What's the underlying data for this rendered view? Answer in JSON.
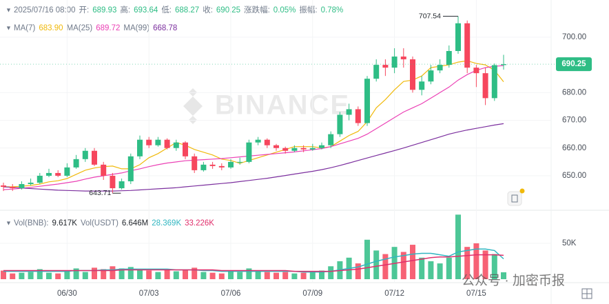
{
  "chart_data": {
    "type": "candlestick",
    "header": {
      "time": "2025/07/16 08:00",
      "open_label": "开:",
      "high_label": "高:",
      "low_label": "低:",
      "close_label": "收:",
      "change_label": "涨跌幅:",
      "change": "0.05%",
      "amp_label": "振幅:",
      "amp": "0.78%"
    },
    "categories": [
      null,
      null,
      null,
      null,
      null,
      null,
      null,
      "06/30",
      null,
      null,
      null,
      null,
      null,
      null,
      null,
      null,
      "07/03",
      null,
      null,
      null,
      null,
      null,
      null,
      null,
      null,
      "07/06",
      null,
      null,
      null,
      null,
      null,
      null,
      null,
      null,
      "07/09",
      null,
      null,
      null,
      null,
      null,
      null,
      null,
      null,
      "07/12",
      null,
      null,
      null,
      null,
      null,
      null,
      null,
      null,
      "07/15",
      null,
      null,
      null
    ],
    "open": [
      646.5,
      646,
      645.5,
      647,
      647.5,
      650,
      651,
      650,
      653,
      656,
      659,
      654,
      650,
      645.5,
      648,
      657,
      663,
      661,
      663,
      660,
      662,
      657,
      652,
      654,
      653.5,
      653,
      655,
      655,
      662,
      663,
      661,
      660,
      659,
      660,
      659.5,
      660,
      661,
      665,
      672,
      674,
      669,
      685,
      690,
      689,
      693,
      692,
      681,
      684,
      688,
      690,
      695,
      705,
      689,
      687,
      678,
      689.93
    ],
    "high": [
      647.5,
      647,
      648,
      649,
      651,
      652.5,
      652,
      654.5,
      657.5,
      660,
      660,
      655,
      651,
      649,
      658,
      664.5,
      664,
      664,
      663.5,
      663,
      662.5,
      658,
      655,
      655,
      654.5,
      656,
      656.5,
      663,
      664,
      663.5,
      661.5,
      660.5,
      661,
      661,
      661.5,
      662,
      666,
      673,
      676,
      675,
      686,
      692,
      692,
      696,
      696,
      693,
      686,
      690,
      692,
      697,
      707.54,
      706,
      690,
      689,
      690.5,
      693.64
    ],
    "low": [
      644.5,
      644.5,
      645,
      646.5,
      647,
      649.5,
      649.5,
      649.5,
      652.5,
      655,
      653.5,
      648.5,
      643.71,
      645,
      647,
      656,
      660,
      660.5,
      659.5,
      659,
      656,
      651,
      651.5,
      652.5,
      652,
      652.5,
      654,
      654.5,
      661,
      660,
      659,
      658,
      658.5,
      658.5,
      659,
      659.5,
      660,
      664,
      670,
      668,
      668,
      684,
      686,
      687,
      689,
      680,
      679,
      683,
      687,
      689,
      694,
      687,
      682,
      675.5,
      677,
      688.27
    ],
    "close": [
      646,
      645.5,
      647,
      647.5,
      650,
      651,
      650,
      653,
      656,
      659,
      654,
      650,
      645.5,
      648,
      657,
      663,
      661,
      663,
      660,
      662,
      657,
      652,
      654,
      653.5,
      653,
      655,
      655,
      662,
      663,
      661,
      660,
      659,
      660,
      659.5,
      660,
      661,
      665,
      672,
      674,
      669,
      685,
      690,
      689,
      693,
      692,
      681,
      684,
      688,
      690,
      695,
      705,
      689,
      687,
      678,
      689.9,
      690.25
    ],
    "up_color": "#2ebd85",
    "down_color": "#f6465d",
    "ylim": [
      638.8,
      713.4
    ],
    "yticks": [
      {
        "value": 650,
        "label": "650.00"
      },
      {
        "value": 660,
        "label": "660.00"
      },
      {
        "value": 670,
        "label": "670.00"
      },
      {
        "value": 680,
        "label": "680.00"
      },
      {
        "value": 700,
        "label": "700.00"
      }
    ],
    "grid": true,
    "ma": [
      {
        "name": "MA(7)",
        "color": "#f0b90b",
        "legend_value": "683.90",
        "values": [
          646,
          646,
          646.2,
          646.5,
          647,
          647.8,
          648.2,
          649,
          650.5,
          652,
          652.8,
          653.3,
          653.5,
          652.5,
          652.5,
          654,
          656.5,
          658,
          660,
          662,
          661,
          659.5,
          658.5,
          657.5,
          656,
          655.5,
          654.5,
          655.5,
          656.5,
          657.5,
          658.5,
          659.5,
          660.5,
          660.5,
          660.5,
          660,
          660.5,
          662.5,
          664.5,
          666,
          669.5,
          674.5,
          677.5,
          681,
          684,
          684.5,
          686,
          689,
          689.5,
          690,
          691,
          691.5,
          690.5,
          690,
          688,
          683.9
        ]
      },
      {
        "name": "MA(25)",
        "color": "#eb40b5",
        "legend_value": "689.72",
        "values": [
          645,
          645.2,
          645.5,
          645.8,
          646.2,
          646.6,
          647,
          647.5,
          648,
          648.8,
          649.5,
          650,
          650.5,
          651,
          651.8,
          652.5,
          653.3,
          654,
          654.6,
          655,
          655.4,
          655.6,
          655.8,
          656,
          656.2,
          656.5,
          656.8,
          657.1,
          657.4,
          657.7,
          658,
          658.3,
          658.6,
          659,
          659.4,
          659.8,
          660.5,
          661.5,
          662.5,
          663.5,
          665,
          667,
          669,
          671,
          673,
          674.5,
          676,
          678,
          680,
          682,
          684.5,
          686.5,
          688,
          689,
          689.5,
          689.72
        ]
      },
      {
        "name": "MA(99)",
        "color": "#7b2e9e",
        "legend_value": "668.78",
        "values": [
          646,
          645.8,
          645.6,
          645.4,
          645.2,
          645,
          644.8,
          644.7,
          644.6,
          644.5,
          644.5,
          644.5,
          644.5,
          644.6,
          644.7,
          644.9,
          645.1,
          645.3,
          645.5,
          645.7,
          646,
          646.3,
          646.6,
          646.9,
          647.2,
          647.5,
          647.9,
          648.3,
          648.7,
          649.1,
          649.6,
          650.1,
          650.6,
          651.1,
          651.6,
          652.2,
          652.9,
          653.7,
          654.6,
          655.5,
          656.4,
          657.3,
          658.2,
          659.1,
          660,
          661,
          662,
          663,
          664,
          665,
          665.8,
          666.5,
          667.1,
          667.7,
          668.3,
          668.78
        ]
      }
    ],
    "volume": {
      "name": "Vol(BNB):",
      "legend_value": "9.617K",
      "name2": "Vol(USDT)",
      "legend_value2": "6.646M",
      "values": [
        12,
        8,
        9,
        10,
        14,
        9,
        8,
        12,
        15,
        10,
        16,
        14,
        18,
        15,
        17,
        13,
        12,
        10,
        14,
        11,
        13,
        16,
        10,
        9,
        8,
        11,
        10,
        15,
        12,
        10,
        9,
        10,
        8,
        9,
        11,
        12,
        18,
        25,
        30,
        22,
        55,
        40,
        35,
        45,
        38,
        48,
        30,
        25,
        22,
        30,
        90,
        45,
        50,
        40,
        35,
        9.617
      ],
      "ylim": [
        0,
        91.3
      ],
      "yticks": [
        {
          "value": 50,
          "label": "50K"
        }
      ]
    },
    "volume_ma": [
      {
        "color": "#31b6c1",
        "legend_value": "28.369K",
        "values": [
          11,
          11,
          11,
          11,
          11,
          11,
          11,
          11,
          12,
          12,
          12,
          13,
          13,
          14,
          14,
          14,
          14,
          14,
          14,
          13,
          13,
          13,
          12,
          12,
          11,
          11,
          11,
          11,
          11,
          11,
          11,
          11,
          11,
          10,
          10,
          10,
          11,
          13,
          15,
          17,
          21,
          25,
          28,
          31,
          33,
          35,
          36,
          36,
          34,
          32,
          38,
          40,
          42,
          42,
          40,
          28.369
        ]
      },
      {
        "color": "#e02e6b",
        "legend_value": "33.226K",
        "values": [
          12,
          12,
          12,
          12,
          12,
          12,
          12,
          12,
          12,
          12,
          12,
          12,
          12,
          13,
          13,
          13,
          13,
          13,
          13,
          13,
          13,
          13,
          13,
          13,
          12,
          12,
          12,
          12,
          12,
          12,
          12,
          12,
          11,
          11,
          11,
          11,
          11,
          12,
          13,
          14,
          16,
          18,
          20,
          22,
          24,
          26,
          28,
          30,
          31,
          31,
          32,
          33,
          34,
          34,
          34,
          33.226
        ]
      }
    ],
    "watermark": "BINANCE",
    "footer_note": "公众号 · 加密币报"
  }
}
